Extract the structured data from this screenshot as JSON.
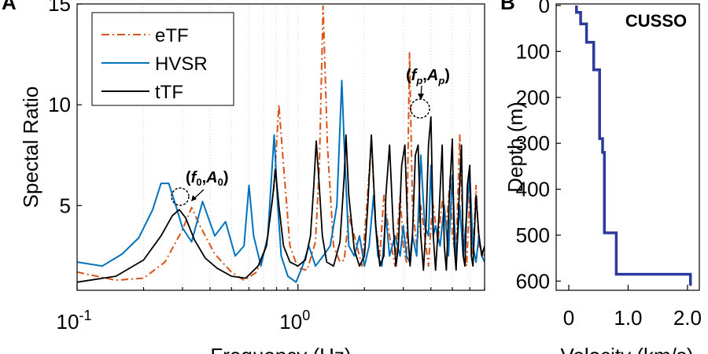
{
  "colors": {
    "eTF": "#d95319",
    "HVSR": "#0072bd",
    "tTF": "#000000",
    "profile": "#2b3a9c",
    "grid": "#d0d0d0"
  },
  "panel_labels": {
    "left": "A",
    "right": "B"
  },
  "chart_data": [
    {
      "type": "line",
      "xscale": "log",
      "xlim": [
        0.1,
        7
      ],
      "ylim": [
        0.8,
        15
      ],
      "xlabel": "Frequency (Hz)",
      "ylabel": "Spectal Ratio",
      "xticks": [
        {
          "value": 0.1,
          "base": "10",
          "exp": "-1"
        },
        {
          "value": 1,
          "base": "10",
          "exp": "0"
        }
      ],
      "yticks": [
        5,
        10,
        15
      ],
      "grid": "x-minor-dotted",
      "legend": "top-left",
      "annotations": [
        {
          "label": "(f0,A0)",
          "x": 0.29,
          "y": 4.8
        },
        {
          "label": "(fp,Ap)",
          "x": 4.0,
          "y": 9.4
        }
      ],
      "series": [
        {
          "name": "eTF",
          "style": "dash-dot",
          "x": [
            0.1,
            0.15,
            0.2,
            0.25,
            0.3,
            0.33,
            0.36,
            0.42,
            0.5,
            0.57,
            0.65,
            0.72,
            0.78,
            0.82,
            0.86,
            0.92,
            1.0,
            1.1,
            1.2,
            1.25,
            1.3,
            1.36,
            1.45,
            1.55,
            1.62,
            1.7,
            1.8,
            1.95,
            2.05,
            2.15,
            2.25,
            2.35,
            2.45,
            2.6,
            2.75,
            2.9,
            3.0,
            3.1,
            3.2,
            3.3,
            3.45,
            3.6,
            3.75,
            3.9,
            4.0,
            4.1,
            4.3,
            4.5,
            4.7,
            4.9,
            5.0,
            5.2,
            5.4,
            5.6,
            5.8,
            6.0,
            6.2,
            6.4,
            6.6,
            7.0
          ],
          "y": [
            1.7,
            1.3,
            1.4,
            2.2,
            3.8,
            4.9,
            4.0,
            2.6,
            1.7,
            1.3,
            1.7,
            3.0,
            6.0,
            10.0,
            7.0,
            3.0,
            1.9,
            1.8,
            3.2,
            7.0,
            14.9,
            8.0,
            3.0,
            2.2,
            2.3,
            4.5,
            3.5,
            2.0,
            5.0,
            8.2,
            4.0,
            2.5,
            5.5,
            3.5,
            2.0,
            5.5,
            3.0,
            2.2,
            12.6,
            5.0,
            3.0,
            5.0,
            3.5,
            2.0,
            4.0,
            5.0,
            3.2,
            5.2,
            4.0,
            6.5,
            3.5,
            2.5,
            8.5,
            3.5,
            2.0,
            5.5,
            2.5,
            6.0,
            3.0,
            2.5
          ]
        },
        {
          "name": "HVSR",
          "style": "solid",
          "x": [
            0.1,
            0.13,
            0.16,
            0.19,
            0.22,
            0.24,
            0.26,
            0.28,
            0.3,
            0.33,
            0.37,
            0.42,
            0.47,
            0.52,
            0.57,
            0.6,
            0.63,
            0.68,
            0.73,
            0.78,
            0.81,
            0.84,
            0.9,
            0.98,
            1.05,
            1.12,
            1.2,
            1.3,
            1.4,
            1.5,
            1.58,
            1.62,
            1.7,
            1.8,
            1.9,
            2.0,
            2.1,
            2.2,
            2.3,
            2.4,
            2.5,
            2.6,
            2.75,
            2.9,
            3.0,
            3.1,
            3.2,
            3.3,
            3.45,
            3.6,
            3.75,
            3.9,
            4.0,
            4.1,
            4.2,
            4.4,
            4.6,
            4.8,
            5.0,
            5.2,
            5.4,
            5.6,
            5.8,
            6.0,
            6.2,
            6.4,
            6.6,
            6.8,
            7.0
          ],
          "y": [
            2.2,
            2.0,
            2.6,
            3.4,
            4.8,
            6.1,
            6.1,
            5.0,
            3.9,
            3.2,
            5.2,
            3.5,
            4.2,
            2.5,
            3.0,
            6.0,
            3.5,
            2.0,
            3.5,
            8.5,
            5.0,
            2.5,
            1.5,
            1.2,
            2.0,
            3.0,
            2.0,
            2.5,
            3.0,
            5.0,
            11.2,
            8.0,
            3.0,
            2.5,
            3.5,
            2.0,
            3.0,
            5.5,
            2.5,
            2.0,
            4.5,
            2.5,
            3.5,
            2.5,
            4.0,
            2.5,
            2.2,
            3.5,
            2.5,
            7.5,
            4.0,
            3.5,
            7.0,
            3.5,
            4.0,
            3.0,
            5.0,
            2.5,
            6.5,
            2.2,
            5.0,
            2.5,
            4.5,
            6.5,
            3.0,
            2.2,
            3.5,
            2.5,
            2.2
          ]
        },
        {
          "name": "tTF",
          "style": "solid",
          "x": [
            0.1,
            0.15,
            0.2,
            0.24,
            0.27,
            0.29,
            0.31,
            0.34,
            0.38,
            0.43,
            0.5,
            0.58,
            0.66,
            0.72,
            0.77,
            0.79,
            0.82,
            0.86,
            0.92,
            1.0,
            1.08,
            1.14,
            1.18,
            1.21,
            1.24,
            1.29,
            1.35,
            1.45,
            1.55,
            1.62,
            1.65,
            1.7,
            1.8,
            1.9,
            2.0,
            2.07,
            2.15,
            2.25,
            2.35,
            2.45,
            2.5,
            2.6,
            2.7,
            2.78,
            2.85,
            2.95,
            3.05,
            3.15,
            3.22,
            3.3,
            3.4,
            3.5,
            3.6,
            3.7,
            3.8,
            3.9,
            4.0,
            4.1,
            4.2,
            4.35,
            4.5,
            4.6,
            4.7,
            4.85,
            5.0,
            5.1,
            5.2,
            5.35,
            5.5,
            5.6,
            5.7,
            5.85,
            6.0,
            6.1,
            6.2,
            6.4,
            6.6,
            6.8,
            7.0
          ],
          "y": [
            1.2,
            1.5,
            2.3,
            3.5,
            4.5,
            4.8,
            4.4,
            3.3,
            2.4,
            1.9,
            1.5,
            1.4,
            2.0,
            3.0,
            5.5,
            6.8,
            5.0,
            3.0,
            2.2,
            2.0,
            2.3,
            3.5,
            6.0,
            8.2,
            6.5,
            3.5,
            2.2,
            2.0,
            3.2,
            6.5,
            8.5,
            5.5,
            2.8,
            2.0,
            2.5,
            5.0,
            8.5,
            4.0,
            2.0,
            2.5,
            5.5,
            8.0,
            4.0,
            2.0,
            3.0,
            7.0,
            8.0,
            3.5,
            2.0,
            3.5,
            7.5,
            8.0,
            3.5,
            1.8,
            4.0,
            8.0,
            9.4,
            3.5,
            1.8,
            4.5,
            8.0,
            3.0,
            1.8,
            5.5,
            8.3,
            3.0,
            1.8,
            5.0,
            8.0,
            2.5,
            2.0,
            6.0,
            7.0,
            2.5,
            2.0,
            5.5,
            3.5,
            2.5,
            3.0
          ]
        }
      ]
    },
    {
      "type": "line",
      "title": "CUSSO",
      "xlabel": "Velocity (km/s)",
      "ylabel": "Depth (m)",
      "xlim": [
        0,
        2.2
      ],
      "ylim": [
        620,
        0
      ],
      "xticks": [
        "0",
        "1.0",
        "2.0"
      ],
      "yticks": [
        "0",
        "100",
        "200",
        "300",
        "400",
        "500",
        "600"
      ],
      "series": [
        {
          "name": "",
          "style": "step",
          "x": [
            0.13,
            0.13,
            0.2,
            0.2,
            0.3,
            0.3,
            0.42,
            0.42,
            0.52,
            0.52,
            0.57,
            0.57,
            0.6,
            0.6,
            0.8,
            0.8,
            2.05,
            2.05
          ],
          "y": [
            0,
            15,
            15,
            40,
            40,
            80,
            80,
            140,
            140,
            290,
            290,
            320,
            320,
            495,
            495,
            585,
            585,
            610
          ]
        }
      ]
    }
  ]
}
